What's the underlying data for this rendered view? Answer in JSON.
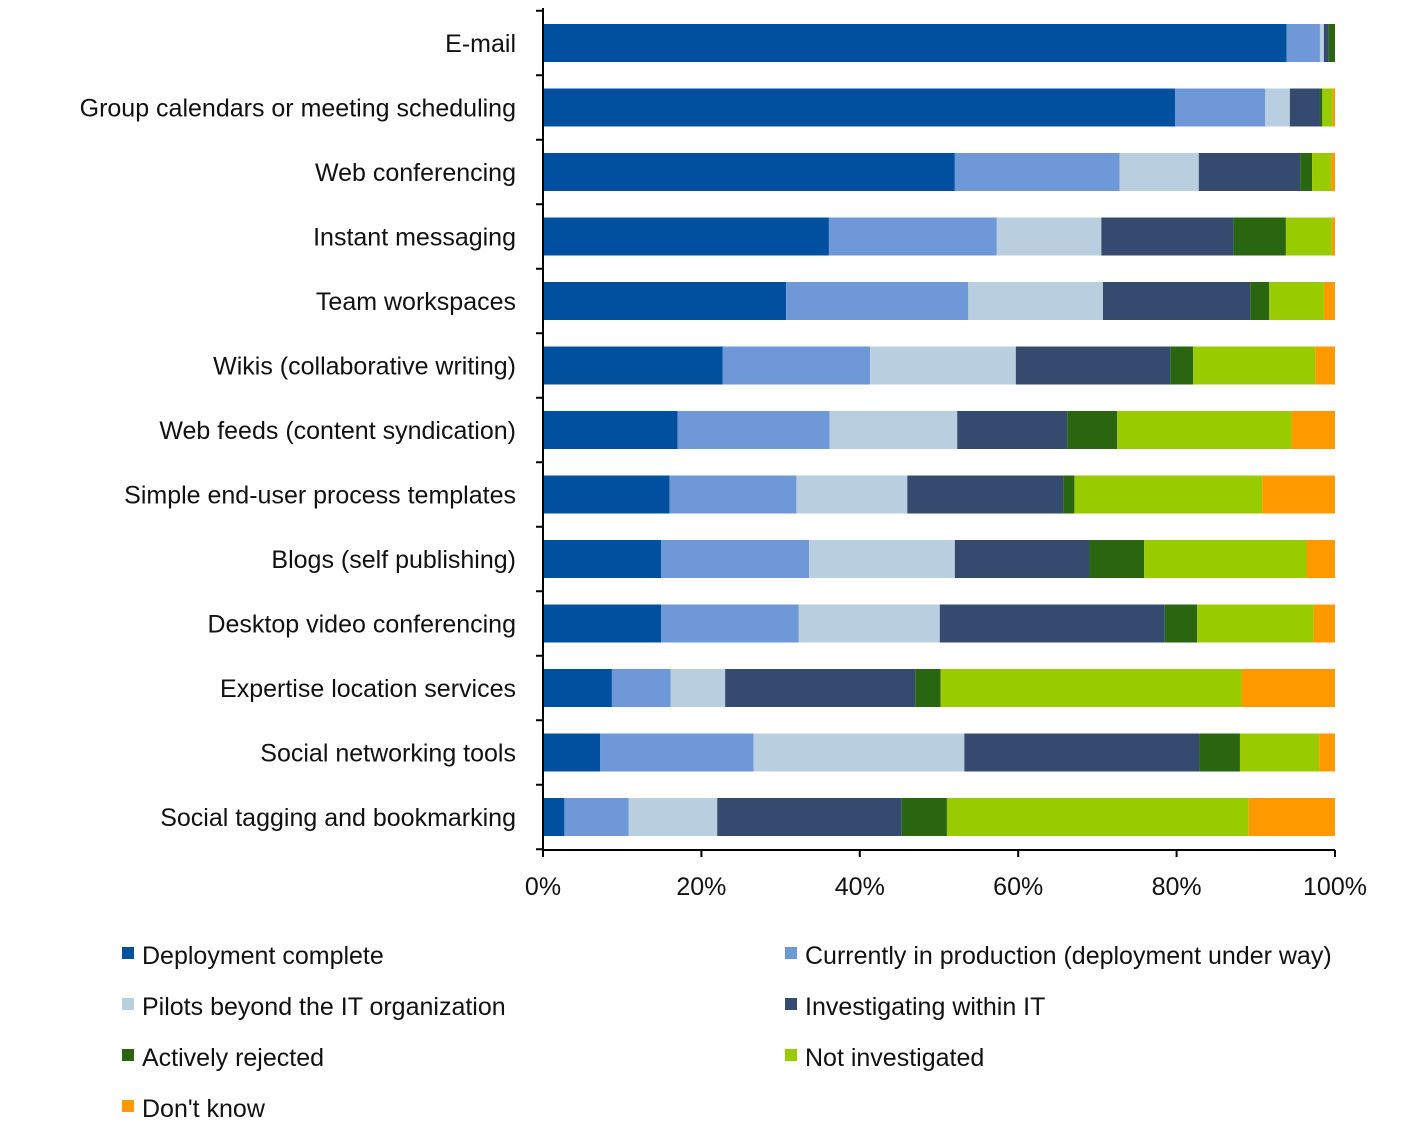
{
  "chart_data": {
    "type": "bar",
    "orientation": "horizontal",
    "stacked": true,
    "percent": true,
    "categories": [
      "E-mail",
      "Group calendars or meeting scheduling",
      "Web conferencing",
      "Instant messaging",
      "Team workspaces",
      "Wikis (collaborative writing)",
      "Web feeds (content syndication)",
      "Simple end-user process templates",
      "Blogs (self publishing)",
      "Desktop video conferencing",
      "Expertise location services",
      "Social networking tools",
      "Social tagging and bookmarking"
    ],
    "series": [
      {
        "name": "Deployment complete",
        "color": "#0050a0",
        "values": [
          93.9,
          79.8,
          52.0,
          36.1,
          30.7,
          22.7,
          17.0,
          16.0,
          14.9,
          14.9,
          8.7,
          7.2,
          2.7
        ]
      },
      {
        "name": "Currently in production (deployment under way)",
        "color": "#6f98d9",
        "values": [
          4.2,
          11.4,
          20.8,
          21.2,
          23.0,
          18.6,
          19.2,
          16.0,
          18.7,
          17.4,
          7.4,
          19.4,
          8.1
        ]
      },
      {
        "name": "Pilots beyond the IT organization",
        "color": "#b9cfe0",
        "values": [
          0.5,
          3.1,
          10.0,
          13.2,
          17.0,
          18.4,
          16.1,
          14.0,
          18.4,
          17.8,
          6.9,
          26.6,
          11.2
        ]
      },
      {
        "name": "Investigating within IT",
        "color": "#344b6f",
        "values": [
          0.6,
          3.8,
          12.8,
          16.7,
          18.6,
          19.5,
          13.9,
          19.7,
          17.0,
          28.4,
          24.0,
          29.7,
          23.3
        ]
      },
      {
        "name": "Actively rejected",
        "color": "#2a6610",
        "values": [
          0.8,
          0.3,
          1.5,
          6.6,
          2.4,
          2.9,
          6.3,
          1.4,
          6.9,
          4.1,
          3.2,
          5.1,
          5.7
        ]
      },
      {
        "name": "Not investigated",
        "color": "#99cc00",
        "values": [
          0.0,
          1.3,
          2.4,
          5.8,
          6.9,
          15.4,
          22.0,
          23.7,
          20.5,
          14.7,
          38.0,
          10.0,
          38.1
        ]
      },
      {
        "name": "Don't know",
        "color": "#ff9900",
        "values": [
          0.0,
          0.3,
          0.5,
          0.4,
          1.4,
          2.5,
          5.5,
          9.2,
          3.6,
          2.7,
          11.8,
          2.0,
          10.9
        ]
      }
    ],
    "xlim": [
      0,
      100
    ],
    "xticks": [
      "0%",
      "20%",
      "40%",
      "60%",
      "80%",
      "100%"
    ],
    "xtick_values": [
      0,
      20,
      40,
      60,
      80,
      100
    ],
    "xlabel": "",
    "ylabel": "",
    "title": "",
    "grid": false,
    "legend_position": "bottom"
  }
}
